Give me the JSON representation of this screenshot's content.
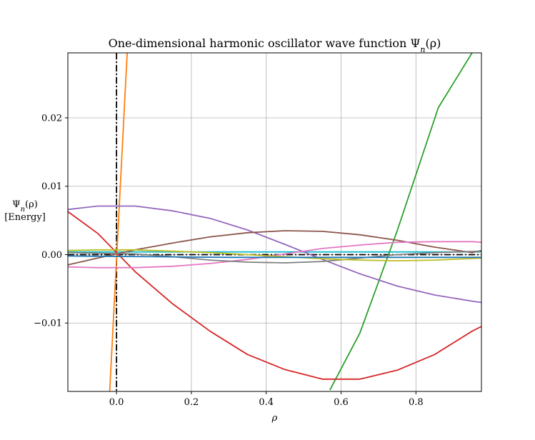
{
  "chart_data": {
    "type": "line",
    "title": "One-dimensional harmonic oscillator wave function Ψn(ρ)",
    "title_parts": {
      "main": "One-dimensional harmonic oscillator wave function Ψ",
      "sub": "n",
      "arg": "(ρ)"
    },
    "xlabel": "ρ",
    "ylabel_line1": {
      "main": "Ψ",
      "sub": "n",
      "arg": "(ρ)"
    },
    "ylabel_line2": "[Energy]",
    "xlim": [
      -0.13,
      0.975
    ],
    "ylim": [
      -0.02,
      0.0295
    ],
    "xticks": [
      0.0,
      0.2,
      0.4,
      0.6,
      0.8
    ],
    "xtick_labels": [
      "0.0",
      "0.2",
      "0.4",
      "0.6",
      "0.8"
    ],
    "yticks": [
      -0.01,
      0.0,
      0.01,
      0.02
    ],
    "ytick_labels": [
      "−0.01",
      "0.00",
      "0.01",
      "0.02"
    ],
    "grid": true,
    "vertical_reference": {
      "x": 0.0,
      "color": "#000000",
      "style": "dash-dot"
    },
    "horizontal_reference": {
      "y": 0.0,
      "color": "#000000",
      "style": "dash-dot"
    },
    "series": [
      {
        "color": "#17becf",
        "x": [
          -0.13,
          0.975
        ],
        "y": [
          0.0004,
          0.0004
        ]
      },
      {
        "color": "#ff7f0e",
        "x": [
          -0.02,
          0.03
        ],
        "y": [
          -0.022,
          0.031
        ]
      },
      {
        "color": "#2ca02c",
        "x": [
          0.57,
          0.65,
          0.75,
          0.86,
          0.95
        ],
        "y": [
          -0.0198,
          -0.0115,
          0.0035,
          0.0215,
          0.0295
        ]
      },
      {
        "color": "#d62728",
        "x": [
          -0.13,
          -0.05,
          0.05,
          0.15,
          0.25,
          0.35,
          0.45,
          0.55,
          0.65,
          0.75,
          0.85,
          0.95,
          0.975
        ],
        "y": [
          0.0063,
          0.0031,
          -0.0025,
          -0.0072,
          -0.0112,
          -0.0146,
          -0.0168,
          -0.0182,
          -0.0182,
          -0.0169,
          -0.0146,
          -0.0112,
          -0.0105
        ]
      },
      {
        "color": "#9467bd",
        "x": [
          -0.13,
          -0.05,
          0.05,
          0.15,
          0.25,
          0.35,
          0.45,
          0.55,
          0.65,
          0.75,
          0.85,
          0.95,
          0.975
        ],
        "y": [
          0.0066,
          0.0071,
          0.0071,
          0.0064,
          0.0053,
          0.0036,
          0.0015,
          -0.0007,
          -0.0028,
          -0.0046,
          -0.0059,
          -0.0068,
          -0.007
        ]
      },
      {
        "color": "#8c564b",
        "x": [
          -0.13,
          -0.05,
          0.05,
          0.15,
          0.25,
          0.35,
          0.45,
          0.55,
          0.65,
          0.75,
          0.85,
          0.95,
          0.975
        ],
        "y": [
          -0.0015,
          -0.0005,
          0.0007,
          0.0017,
          0.0026,
          0.0032,
          0.0035,
          0.0034,
          0.0029,
          0.0021,
          0.0011,
          0.0003,
          0.0006
        ]
      },
      {
        "color": "#e377c2",
        "x": [
          -0.13,
          -0.05,
          0.05,
          0.15,
          0.25,
          0.35,
          0.45,
          0.55,
          0.65,
          0.75,
          0.85,
          0.95,
          0.975
        ],
        "y": [
          -0.0018,
          -0.0019,
          -0.0019,
          -0.0017,
          -0.0013,
          -0.0007,
          0.0001,
          0.0009,
          0.0014,
          0.0018,
          0.0019,
          0.0019,
          0.0018
        ]
      },
      {
        "color": "#7f7f7f",
        "x": [
          -0.13,
          0.05,
          0.15,
          0.25,
          0.35,
          0.45,
          0.55,
          0.65,
          0.75,
          0.85,
          0.975
        ],
        "y": [
          0.0003,
          0.0001,
          -0.0003,
          -0.0008,
          -0.0011,
          -0.0012,
          -0.001,
          -0.0005,
          0.0,
          0.0003,
          0.0005
        ]
      },
      {
        "color": "#bcbd22",
        "x": [
          -0.13,
          -0.05,
          0.05,
          0.15,
          0.25,
          0.35,
          0.45,
          0.55,
          0.65,
          0.75,
          0.85,
          0.975
        ],
        "y": [
          0.0006,
          0.0007,
          0.0007,
          0.0005,
          0.0003,
          0.0,
          -0.0003,
          -0.0006,
          -0.0008,
          -0.0009,
          -0.0008,
          -0.0005
        ]
      },
      {
        "color": "#1f77b4",
        "x": [
          -0.13,
          0.1,
          0.3,
          0.5,
          0.7,
          0.975
        ],
        "y": [
          -0.0002,
          -0.0003,
          -0.0004,
          -0.0004,
          -0.0004,
          -0.0004
        ]
      }
    ]
  }
}
